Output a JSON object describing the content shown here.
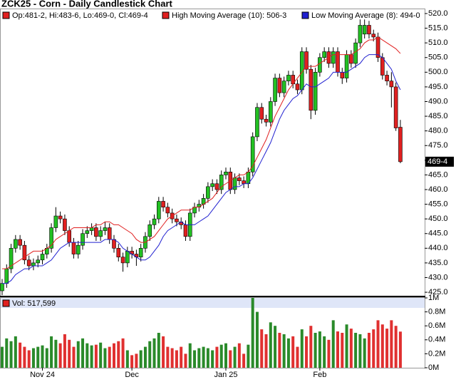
{
  "chart_data": {
    "type": "candlestick",
    "title": "ZCK25 - Corn - Daily Candlestick Chart",
    "ohlc_legend": "Op:481-2, Hi:483-6, Lo:469-0, Cl:469-4",
    "last_label": "469-4",
    "up_color": "#22c022",
    "down_color": "#e02020",
    "categories": [
      null,
      null,
      null,
      null,
      null,
      null,
      null,
      null,
      null,
      "Nov 24",
      null,
      null,
      null,
      null,
      null,
      null,
      null,
      null,
      null,
      null,
      null,
      null,
      null,
      null,
      null,
      null,
      null,
      null,
      null,
      "Dec",
      null,
      null,
      null,
      null,
      null,
      null,
      null,
      null,
      null,
      null,
      null,
      null,
      null,
      null,
      null,
      null,
      null,
      null,
      null,
      null,
      "Jan 25",
      null,
      null,
      null,
      null,
      null,
      null,
      null,
      null,
      null,
      null,
      null,
      null,
      null,
      null,
      null,
      null,
      null,
      null,
      null,
      null,
      "Feb",
      null,
      null,
      null,
      null,
      null,
      null,
      null,
      null,
      null,
      null,
      null,
      null,
      null,
      null,
      null,
      null,
      null,
      null
    ],
    "ylim": [
      423.8,
      521.7
    ],
    "yticks": [
      {
        "value": 425,
        "label": "425.0"
      },
      {
        "value": 430,
        "label": "430.0"
      },
      {
        "value": 435,
        "label": "435.0"
      },
      {
        "value": 440,
        "label": "440.0"
      },
      {
        "value": 445,
        "label": "445.0"
      },
      {
        "value": 450,
        "label": "450.0"
      },
      {
        "value": 455,
        "label": "455.0"
      },
      {
        "value": 460,
        "label": "460.0"
      },
      {
        "value": 465,
        "label": "465.0"
      },
      {
        "value": 470,
        "label": "470.0"
      },
      {
        "value": 475,
        "label": "475.0"
      },
      {
        "value": 480,
        "label": "480.0"
      },
      {
        "value": 485,
        "label": "485.0"
      },
      {
        "value": 490,
        "label": "490.0"
      },
      {
        "value": 495,
        "label": "495.0"
      },
      {
        "value": 500,
        "label": "500.0"
      },
      {
        "value": 505,
        "label": "505.0"
      },
      {
        "value": 510,
        "label": "510.0"
      },
      {
        "value": 515,
        "label": "515.0"
      },
      {
        "value": 520,
        "label": "520.0"
      }
    ],
    "candles": [
      [
        425.5,
        429.5,
        424,
        428
      ],
      [
        428,
        434.5,
        426.5,
        433
      ],
      [
        433,
        441.5,
        431.5,
        440
      ],
      [
        440,
        444.5,
        438.5,
        443
      ],
      [
        443,
        444.5,
        439.5,
        441
      ],
      [
        441,
        442.5,
        434.5,
        436
      ],
      [
        436,
        437.5,
        432.5,
        434
      ],
      [
        434,
        436.5,
        432.5,
        435
      ],
      [
        435,
        437.5,
        433.5,
        436
      ],
      [
        436,
        439.5,
        434.5,
        438
      ],
      [
        438,
        441.5,
        436.5,
        440
      ],
      [
        440,
        448.5,
        438.5,
        447
      ],
      [
        447,
        454,
        445.5,
        451
      ],
      [
        451,
        452.5,
        448.5,
        450
      ],
      [
        450,
        451.5,
        444.5,
        446
      ],
      [
        446,
        447.5,
        440.5,
        442
      ],
      [
        442,
        443.5,
        436.5,
        438
      ],
      [
        438,
        442.5,
        436.5,
        441
      ],
      [
        441,
        446.5,
        439.5,
        445
      ],
      [
        445,
        447.5,
        443.5,
        446
      ],
      [
        446,
        448.5,
        444.5,
        447
      ],
      [
        447,
        448.5,
        442.5,
        444
      ],
      [
        444,
        447.5,
        442.5,
        446
      ],
      [
        446,
        449,
        444.5,
        447
      ],
      [
        447,
        448.5,
        441.5,
        443
      ],
      [
        443,
        444.5,
        438.5,
        440
      ],
      [
        440,
        441.5,
        435.5,
        437
      ],
      [
        437,
        438.5,
        432,
        435
      ],
      [
        435,
        440.5,
        433.5,
        439
      ],
      [
        439,
        440.5,
        436.5,
        438
      ],
      [
        438,
        439.5,
        434,
        437
      ],
      [
        437,
        441.5,
        435.5,
        440
      ],
      [
        440,
        445.5,
        438.5,
        444
      ],
      [
        444,
        449.5,
        442.5,
        448
      ],
      [
        448,
        451.5,
        446.5,
        450
      ],
      [
        450,
        457.5,
        448.5,
        456
      ],
      [
        456,
        457.5,
        452.5,
        454
      ],
      [
        454,
        455.5,
        450.5,
        452
      ],
      [
        452,
        453.5,
        448.5,
        450
      ],
      [
        450,
        451.5,
        447.5,
        449
      ],
      [
        449,
        450.5,
        446.5,
        448
      ],
      [
        448,
        449.5,
        442.5,
        444
      ],
      [
        444,
        453.5,
        442.5,
        452
      ],
      [
        452,
        455.5,
        450.5,
        454
      ],
      [
        454,
        456.5,
        452.5,
        455
      ],
      [
        455,
        458.5,
        453.5,
        457
      ],
      [
        457,
        462.5,
        455.5,
        461
      ],
      [
        461,
        463.5,
        459.5,
        462
      ],
      [
        462,
        463.5,
        458.5,
        460
      ],
      [
        460,
        466.5,
        458.5,
        465
      ],
      [
        465,
        467.5,
        463.5,
        466
      ],
      [
        466,
        467.5,
        458.5,
        460
      ],
      [
        460,
        465.5,
        458.5,
        464
      ],
      [
        464,
        465.5,
        461.5,
        463
      ],
      [
        463,
        464.5,
        460.5,
        462
      ],
      [
        462,
        467.5,
        460.5,
        466
      ],
      [
        466,
        479.5,
        464.5,
        478
      ],
      [
        478,
        489.5,
        476.5,
        488
      ],
      [
        488,
        489.5,
        482.5,
        484
      ],
      [
        484,
        485.5,
        481.5,
        483
      ],
      [
        483,
        491.5,
        481.5,
        490
      ],
      [
        490,
        499.5,
        488.5,
        498
      ],
      [
        498,
        499.5,
        491.5,
        493
      ],
      [
        493,
        498.5,
        491.5,
        497
      ],
      [
        497,
        500.5,
        495.5,
        499
      ],
      [
        499,
        500.5,
        494.5,
        496
      ],
      [
        496,
        497.5,
        492.5,
        494
      ],
      [
        494,
        508.5,
        492.5,
        507
      ],
      [
        507,
        508.5,
        499.5,
        501
      ],
      [
        501,
        502.5,
        484,
        487
      ],
      [
        487,
        501.5,
        485.5,
        500
      ],
      [
        500,
        506.5,
        498.5,
        505
      ],
      [
        505,
        508.5,
        503.5,
        507
      ],
      [
        507,
        508.5,
        501.5,
        503
      ],
      [
        503,
        508.5,
        501.5,
        507
      ],
      [
        507,
        508.5,
        498.5,
        500
      ],
      [
        500,
        501.5,
        496,
        498
      ],
      [
        498,
        507.5,
        496.5,
        506
      ],
      [
        506,
        507.5,
        501.5,
        503
      ],
      [
        503,
        511.5,
        501.5,
        510
      ],
      [
        510,
        518,
        508.5,
        516
      ],
      [
        513,
        518,
        511.5,
        516
      ],
      [
        516,
        517.5,
        511.5,
        513
      ],
      [
        513,
        514.5,
        510.5,
        512
      ],
      [
        512,
        513.5,
        503.5,
        505
      ],
      [
        505,
        506.5,
        497.5,
        499
      ],
      [
        499,
        500.5,
        495.5,
        497
      ],
      [
        497,
        500,
        488,
        495
      ],
      [
        495,
        496.5,
        480,
        481
      ],
      [
        481.25,
        483.75,
        469,
        469.5
      ]
    ],
    "series": [
      {
        "name": "High Moving Average (10): 506-3",
        "color": "#e02020",
        "values": [
          433,
          433,
          434,
          435,
          436,
          437,
          438,
          439,
          439,
          439,
          440,
          441,
          443,
          444,
          445,
          446,
          447,
          447,
          447,
          447,
          447,
          448,
          448,
          449,
          449,
          448,
          448,
          447,
          446,
          445,
          443,
          442,
          442,
          443,
          444,
          446,
          448,
          450,
          451,
          452,
          453,
          453,
          453,
          454,
          454,
          455,
          456,
          457,
          459,
          461,
          462,
          463,
          464,
          465,
          465,
          466,
          468,
          471,
          474,
          477,
          481,
          485,
          488,
          491,
          494,
          496,
          498,
          500,
          502,
          502,
          502,
          503,
          504,
          505,
          506,
          506,
          506,
          506,
          506,
          507,
          508,
          510,
          511,
          511,
          512,
          511,
          510,
          509,
          508,
          506.375
        ]
      },
      {
        "name": "Low Moving Average (8): 494-0",
        "color": "#2020d0",
        "values": [
          428,
          428,
          429,
          431,
          432,
          433,
          433,
          434,
          434,
          434,
          435,
          436,
          438,
          440,
          441,
          442,
          442,
          442,
          442,
          442,
          442,
          442,
          442,
          443,
          443,
          443,
          442,
          440,
          439,
          438,
          437,
          436,
          436,
          437,
          439,
          441,
          444,
          446,
          447,
          448,
          449,
          448,
          448,
          448,
          449,
          450,
          451,
          453,
          455,
          457,
          459,
          460,
          461,
          461,
          462,
          462,
          464,
          467,
          470,
          473,
          476,
          480,
          484,
          487,
          489,
          491,
          492,
          494,
          496,
          495,
          495,
          496,
          497,
          498,
          500,
          500,
          500,
          500,
          501,
          502,
          503,
          505,
          506,
          506,
          506,
          505,
          503,
          501,
          497,
          494
        ]
      }
    ],
    "volume": {
      "title": "Vol: 517,599",
      "ylim": [
        0,
        1000000
      ],
      "yticks": [
        {
          "value": 0,
          "label": "0M"
        },
        {
          "value": 200000,
          "label": "0.2M"
        },
        {
          "value": 400000,
          "label": "0.4M"
        },
        {
          "value": 600000,
          "label": "0.6M"
        },
        {
          "value": 800000,
          "label": "0.8M"
        },
        {
          "value": 1000000,
          "label": "1M"
        }
      ],
      "values": [
        300000,
        420000,
        380000,
        450000,
        360000,
        300000,
        250000,
        280000,
        300000,
        320000,
        280000,
        450000,
        400000,
        350000,
        480000,
        400000,
        300000,
        380000,
        420000,
        350000,
        320000,
        330000,
        360000,
        280000,
        300000,
        350000,
        380000,
        420000,
        250000,
        180000,
        200000,
        250000,
        300000,
        380000,
        420000,
        500000,
        450000,
        300000,
        280000,
        250000,
        300000,
        200000,
        350000,
        250000,
        280000,
        300000,
        280000,
        250000,
        300000,
        330000,
        350000,
        250000,
        300000,
        350000,
        200000,
        330000,
        1000000,
        800000,
        550000,
        480000,
        650000,
        600000,
        500000,
        480000,
        420000,
        450000,
        300000,
        550000,
        450000,
        600000,
        500000,
        520000,
        450000,
        400000,
        680000,
        520000,
        500000,
        620000,
        560000,
        500000,
        480000,
        420000,
        500000,
        550000,
        680000,
        620000,
        560000,
        680000,
        600000,
        517599
      ]
    }
  }
}
